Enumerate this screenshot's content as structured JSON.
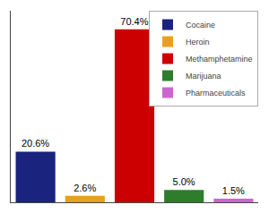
{
  "chart_data": {
    "type": "bar",
    "categories": [
      "Cocaine",
      "Heroin",
      "Methamphetamine",
      "Marijuana",
      "Pharmaceuticals"
    ],
    "values": [
      20.6,
      2.6,
      70.4,
      5.0,
      1.5
    ],
    "value_labels": [
      "20.6%",
      "2.6%",
      "70.4%",
      "5.0%",
      "1.5%"
    ],
    "colors": [
      "#1a237e",
      "#e8a020",
      "#cc0000",
      "#2d7d2d",
      "#cc66cc"
    ],
    "data_labels": true,
    "ylim": [
      0,
      78
    ],
    "tick_labels": false,
    "grid": false,
    "legend": "upper right"
  }
}
